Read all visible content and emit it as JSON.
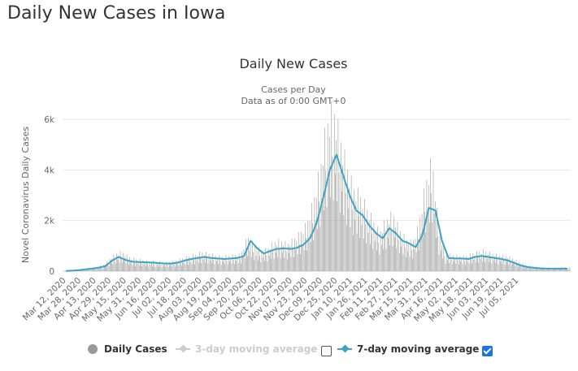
{
  "page": {
    "title": "Daily New Cases in Iowa"
  },
  "legend": {
    "items": [
      {
        "label": "Daily Cases",
        "color": "#999999",
        "enabled": true
      },
      {
        "label": "3-day moving average",
        "color": "#cccccc",
        "enabled": false,
        "checked": false
      },
      {
        "label": "7-day moving average",
        "color": "#3ba3c3",
        "enabled": true,
        "checked": true
      }
    ]
  },
  "chart_data": {
    "type": "bar",
    "title": "Daily New Cases",
    "subtitle_lines": [
      "Cases per Day",
      "Data as of 0:00 GMT+0"
    ],
    "xlabel": "",
    "ylabel": "Novel Coronavirus Daily Cases",
    "ylim": [
      0,
      6000
    ],
    "yticks": [
      0,
      2000,
      4000,
      6000
    ],
    "ytick_labels": [
      "0",
      "2k",
      "4k",
      "6k"
    ],
    "grid": true,
    "legend_position": "bottom",
    "start_date": "Mar 12, 2020",
    "end_date": "Jul 14, 2021",
    "xtick_labels": [
      "Mar 12, 2020",
      "Mar 28, 2020",
      "Apr 13, 2020",
      "Apr 29, 2020",
      "May 15, 2020",
      "May 31, 2020",
      "Jun 16, 2020",
      "Jul 02, 2020",
      "Jul 18, 2020",
      "Aug 03, 2020",
      "Aug 19, 2020",
      "Sep 04, 2020",
      "Sep 20, 2020",
      "Oct 06, 2020",
      "Oct 22, 2020",
      "Nov 07, 2020",
      "Nov 23, 2020",
      "Dec 09, 2020",
      "Dec 25, 2020",
      "Jan 10, 2021",
      "Jan 26, 2021",
      "Feb 11, 2021",
      "Feb 27, 2021",
      "Mar 15, 2021",
      "Mar 31, 2021",
      "Apr 16, 2021",
      "May 02, 2021",
      "May 18, 2021",
      "Jun 03, 2021",
      "Jun 19, 2021",
      "Jul 05, 2021"
    ],
    "series": [
      {
        "name": "Daily Cases",
        "type": "bar",
        "color": "#999999",
        "note": "approximate weekly-sampled daily values (cases/day), one per week starting Mar 12, 2020",
        "values": [
          5,
          20,
          40,
          70,
          100,
          130,
          180,
          350,
          550,
          600,
          450,
          380,
          350,
          300,
          300,
          280,
          280,
          320,
          400,
          450,
          500,
          600,
          550,
          500,
          450,
          480,
          500,
          550,
          1100,
          800,
          650,
          700,
          900,
          950,
          850,
          1000,
          1200,
          1500,
          2200,
          3200,
          4600,
          5100,
          4200,
          3300,
          2600,
          2400,
          2000,
          1600,
          1200,
          1600,
          1800,
          1300,
          1000,
          900,
          1500,
          2800,
          3500,
          1200,
          550,
          500,
          480,
          450,
          550,
          600,
          650,
          550,
          500,
          480,
          420,
          300,
          200,
          150,
          130,
          110,
          100,
          110,
          120
        ]
      },
      {
        "name": "7-day moving average",
        "type": "line",
        "color": "#3ba3c3",
        "note": "approximate weekly-sampled values (cases/day)",
        "values": [
          5,
          20,
          40,
          70,
          100,
          140,
          200,
          420,
          560,
          450,
          380,
          360,
          350,
          340,
          320,
          300,
          300,
          340,
          420,
          480,
          520,
          560,
          520,
          500,
          480,
          500,
          520,
          600,
          1200,
          900,
          700,
          800,
          880,
          900,
          880,
          920,
          1050,
          1300,
          1900,
          2900,
          4000,
          4600,
          3800,
          3000,
          2400,
          2200,
          1800,
          1500,
          1300,
          1700,
          1500,
          1200,
          1100,
          950,
          1400,
          2500,
          2400,
          1200,
          520,
          500,
          500,
          480,
          560,
          600,
          560,
          520,
          480,
          420,
          320,
          220,
          160,
          130,
          110,
          100,
          100,
          100,
          100
        ]
      }
    ]
  }
}
